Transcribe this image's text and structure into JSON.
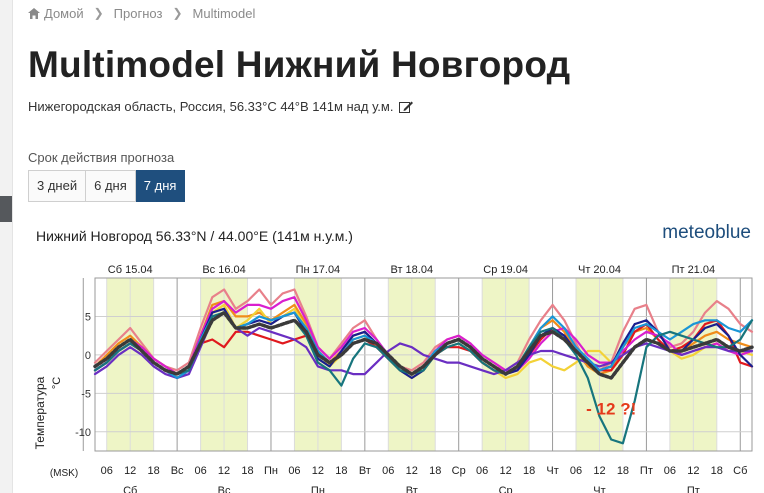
{
  "breadcrumb": {
    "home": "Домой",
    "forecast": "Прогноз",
    "current": "Multimodel"
  },
  "page": {
    "title": "Multimodel Нижний Новгород",
    "subtitle": "Нижегородская область, Россия, 56.33°C 44°B 141м над у.м."
  },
  "period": {
    "label": "Срок действия прогноза",
    "tabs": [
      {
        "label": "3 дней",
        "active": false
      },
      {
        "label": "6 дня",
        "active": false
      },
      {
        "label": "7 дня",
        "active": true
      }
    ]
  },
  "chart_data": {
    "type": "line",
    "header": "Нижний Новгород  56.33°N / 44.00°E (141м н.у.м.)",
    "brand": "meteoblue",
    "ylabel": "Температура",
    "yunit": "°C",
    "xunit": "(MSK)",
    "ylim": [
      -12.5,
      10
    ],
    "yticks": [
      5,
      0,
      -5,
      -10
    ],
    "top_days": [
      "Сб 15.04",
      "Вс 16.04",
      "Пн 17.04",
      "Вт 18.04",
      "Ср 19.04",
      "Чт 20.04",
      "Пт 21.04"
    ],
    "bottom_ticks": [
      "06",
      "12",
      "18",
      "Вс",
      "06",
      "12",
      "18",
      "Пн",
      "06",
      "12",
      "18",
      "Вт",
      "06",
      "12",
      "18",
      "Ср",
      "06",
      "12",
      "18",
      "Чт",
      "06",
      "12",
      "18",
      "Пт",
      "06",
      "12",
      "18",
      "Сб"
    ],
    "bottom_days": [
      "Сб",
      "Вс",
      "Пн",
      "Вт",
      "Ср",
      "Чт",
      "Пт"
    ],
    "annotation": "- 12 ?!",
    "annotation_color": "#e53b1c",
    "x": [
      0,
      3,
      6,
      9,
      12,
      15,
      18,
      21,
      24,
      27,
      30,
      33,
      36,
      39,
      42,
      45,
      48,
      51,
      54,
      57,
      60,
      63,
      66,
      69,
      72,
      75,
      78,
      81,
      84,
      87,
      90,
      93,
      96,
      99,
      102,
      105,
      108,
      111,
      114,
      117,
      120,
      123,
      126,
      129,
      132,
      135,
      138,
      141,
      144,
      147,
      150,
      153,
      156,
      159,
      162,
      165,
      168
    ],
    "series": [
      {
        "color": "#e8808a",
        "dashed": false,
        "values": [
          -1,
          0.5,
          2,
          3.5,
          1.5,
          -0.5,
          -1.5,
          -2,
          -1,
          3.5,
          7.5,
          8.5,
          6,
          7,
          8.5,
          6.5,
          8,
          8.5,
          5,
          1,
          -0.5,
          1.5,
          3.5,
          4.5,
          2,
          -0.5,
          -1.5,
          -2,
          -1,
          1,
          2,
          2.5,
          1.5,
          -0.5,
          -1.5,
          -2,
          -1,
          2,
          4.5,
          6.5,
          4.5,
          1.5,
          -1.5,
          -2,
          -1,
          3,
          6,
          6.5,
          3,
          1,
          1.5,
          3,
          5.5,
          7,
          6,
          4,
          3
        ]
      },
      {
        "color": "#f08c1a",
        "dashed": false,
        "values": [
          -1.5,
          0,
          1.5,
          2.5,
          1,
          -0.5,
          -1.5,
          -2.5,
          -1.5,
          2.5,
          6.5,
          7,
          5,
          5,
          5.5,
          4.5,
          5.5,
          6.5,
          4,
          0.5,
          -1,
          0.5,
          2.5,
          3,
          1.5,
          0,
          -1.5,
          -2.5,
          -1.5,
          0.5,
          1.5,
          2,
          1,
          -0.5,
          -1.5,
          -2.5,
          -1.5,
          1,
          3.5,
          4.5,
          3,
          0.5,
          -1.5,
          -2.5,
          -2,
          1,
          3,
          3.5,
          2,
          0.5,
          0.5,
          1.5,
          2.5,
          3,
          2,
          1.5,
          1
        ]
      },
      {
        "color": "#f3d237",
        "dashed": false,
        "values": [
          -1.5,
          -0.5,
          1,
          2,
          0.5,
          -1,
          -2,
          -3,
          -2,
          2,
          5.5,
          6.5,
          3.5,
          4.5,
          6,
          4,
          5,
          6,
          3.5,
          0.5,
          -1.5,
          0,
          2,
          2.5,
          1,
          -0.5,
          -2,
          -3,
          -2,
          0,
          1,
          1.5,
          0.5,
          -1,
          -2,
          -3,
          -2.5,
          -1,
          -0.5,
          -1.5,
          -2,
          -1,
          0.5,
          0.5,
          -1,
          0,
          1,
          2,
          1.5,
          0.5,
          -0.5,
          0,
          1,
          1.5,
          0.5,
          0.5,
          0
        ]
      },
      {
        "color": "#e0191e",
        "dashed": false,
        "values": [
          -2,
          -1,
          0.5,
          1.5,
          0.5,
          -1,
          -2,
          -3,
          -2,
          1.5,
          2,
          1,
          3,
          3,
          2.5,
          2,
          1.5,
          2,
          2.5,
          0.5,
          -1,
          0,
          1.5,
          2,
          1,
          -0.5,
          -1.5,
          -2.5,
          -1.5,
          0,
          1,
          1,
          0.5,
          -1,
          -2,
          -2.5,
          -2,
          0,
          2,
          3.5,
          2.5,
          0.5,
          -1,
          -2,
          -2,
          0,
          3,
          4,
          2,
          0.5,
          1,
          2,
          4,
          4.5,
          2.5,
          -1,
          -1.5
        ]
      },
      {
        "color": "#d91fce",
        "dashed": false,
        "values": [
          -1.5,
          -0.5,
          1,
          2,
          1,
          -0.5,
          -1.5,
          -2.5,
          -1.5,
          2.5,
          6,
          7,
          5.5,
          6.5,
          6.5,
          6,
          7,
          7.5,
          4.5,
          1,
          -0.5,
          1,
          3,
          3.5,
          2,
          0,
          -1.5,
          -2.5,
          -1.5,
          0.5,
          2,
          2.5,
          1.5,
          0,
          -1,
          -2,
          -2,
          -0.5,
          1.5,
          3,
          3.5,
          2,
          0,
          -1,
          -1,
          0.5,
          2,
          3,
          2.5,
          1.5,
          0,
          0.5,
          1,
          1.5,
          0.5,
          0,
          0.5
        ]
      },
      {
        "color": "#6a2ec2",
        "dashed": false,
        "values": [
          -2.5,
          -1.5,
          0,
          1,
          0,
          -1.5,
          -2.5,
          -3,
          -2.5,
          1,
          4.5,
          5.5,
          3.5,
          2.5,
          3.5,
          3,
          2.5,
          2,
          1,
          -1.5,
          -2,
          -2,
          -2.5,
          -2.5,
          -1,
          0.5,
          1.5,
          1,
          0,
          -0.5,
          -1,
          -1,
          -1.5,
          -2,
          -2.5,
          -2,
          -1,
          0,
          0.5,
          0.5,
          0,
          -0.5,
          -1,
          -1.5,
          -1,
          0,
          1,
          1.5,
          1,
          0.5,
          0,
          0.5,
          1,
          1,
          0.5,
          0.5,
          0.5
        ]
      },
      {
        "color": "#1a1f8f",
        "dashed": false,
        "values": [
          -2,
          -1,
          0.5,
          1.5,
          0.5,
          -1,
          -2,
          -3,
          -2,
          2,
          5.5,
          6,
          3.5,
          4,
          4.5,
          4,
          5,
          5.5,
          3,
          -0.5,
          -1.5,
          0.5,
          2.5,
          3,
          1.5,
          -0.5,
          -2,
          -3,
          -2,
          0,
          1.5,
          2,
          1,
          -0.5,
          -1.5,
          -2.5,
          -2,
          0,
          2.5,
          3.5,
          2.5,
          0.5,
          -1,
          -2,
          -1.5,
          1.5,
          4,
          4.5,
          3,
          0.5,
          0.5,
          2,
          3.5,
          4,
          2.5,
          0,
          -1.5
        ]
      },
      {
        "color": "#1a96d6",
        "dashed": false,
        "values": [
          -1.5,
          -0.5,
          1,
          2,
          0.5,
          -1,
          -2,
          -3,
          -2,
          2,
          5,
          5.5,
          3.5,
          4,
          5,
          4.5,
          5,
          5.5,
          3.5,
          0.5,
          -1,
          0,
          2,
          2.5,
          1.5,
          0,
          -1.5,
          -2.5,
          -1.5,
          0.5,
          1.5,
          2,
          1,
          -0.5,
          -1.5,
          -2.5,
          -1.5,
          1,
          3.5,
          5,
          3.5,
          1,
          -0.5,
          -2,
          -1.5,
          1,
          3.5,
          4,
          3,
          2,
          3,
          4,
          4.5,
          4.5,
          3.5,
          3,
          4.5
        ]
      },
      {
        "color": "#17757d",
        "dashed": false,
        "values": [
          -2,
          -1,
          0.5,
          1.5,
          0.5,
          -1,
          -2,
          -2.5,
          -2,
          1.5,
          5,
          5.5,
          3.5,
          3.5,
          4,
          3.5,
          4,
          4.5,
          2.5,
          -1,
          -2,
          -4,
          -0.5,
          1.5,
          1,
          -0.5,
          -2,
          -2.5,
          -2,
          0,
          1,
          1.5,
          0.5,
          -1,
          -2,
          -2.5,
          -1.5,
          1,
          3,
          3.5,
          2,
          0,
          -3,
          -8,
          -11,
          -11.5,
          -6,
          1,
          2.5,
          3,
          2.5,
          2,
          1.5,
          1,
          1,
          2,
          4.5
        ]
      },
      {
        "color": "#3a3a3a",
        "dashed": true,
        "values": [
          -1.5,
          -0.5,
          1,
          2,
          0.5,
          -1,
          -2,
          -2.5,
          -1.5,
          1.5,
          4.5,
          5.5,
          3.5,
          3.5,
          4,
          3.5,
          4,
          4.5,
          3,
          0,
          -1,
          0,
          1.5,
          2,
          1.5,
          0,
          -1.5,
          -2.5,
          -1.5,
          0,
          1.5,
          2,
          1,
          -0.5,
          -1.5,
          -2.5,
          -1.5,
          0.5,
          2.5,
          3,
          2,
          0.5,
          -1,
          -2.5,
          -3,
          -1,
          1,
          2,
          1.5,
          0.5,
          0.5,
          1,
          1.5,
          2,
          1,
          0.5,
          1
        ]
      }
    ]
  }
}
